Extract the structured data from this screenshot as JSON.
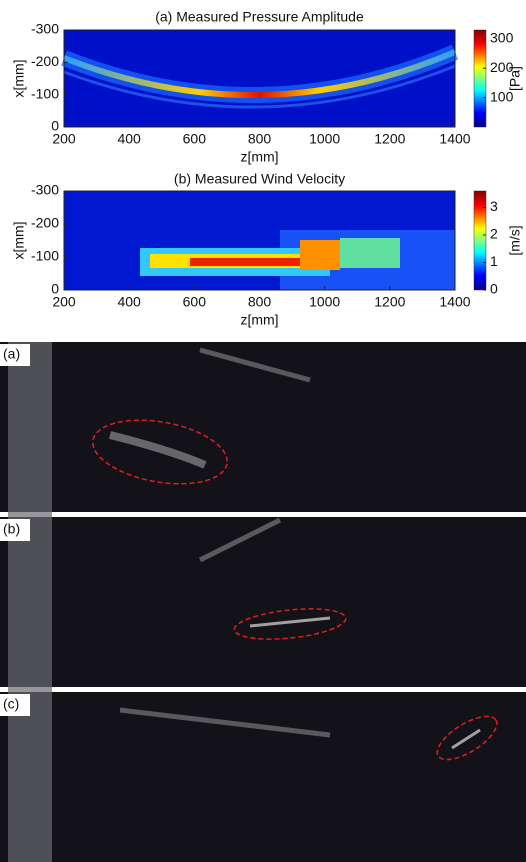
{
  "figure": {
    "panels": [
      {
        "title": "(a) Measured Pressure Amplitude",
        "xlabel": "z[mm]",
        "ylabel": "x[mm]",
        "xlim": [
          200,
          1400
        ],
        "ylim": [
          0,
          -300
        ],
        "xticks": [
          200,
          400,
          600,
          800,
          1000,
          1200,
          1400
        ],
        "yticks": [
          -300,
          -200,
          -100,
          0
        ],
        "colorbar": {
          "label": "[Pa]",
          "lim": [
            0,
            330
          ],
          "ticks": [
            100,
            200,
            300
          ]
        }
      },
      {
        "title": "(b) Measured Wind Velocity",
        "xlabel": "z[mm]",
        "ylabel": "x[mm]",
        "xlim": [
          200,
          1400
        ],
        "ylim": [
          0,
          -300
        ],
        "xticks": [
          200,
          400,
          600,
          800,
          1000,
          1200,
          1400
        ],
        "yticks": [
          -300,
          -200,
          -100,
          0
        ],
        "colorbar": {
          "label": "[m/s]",
          "lim": [
            0,
            3.6
          ],
          "ticks": [
            0,
            1,
            2,
            3
          ]
        }
      }
    ],
    "photos": [
      {
        "label": "(a)"
      },
      {
        "label": "(b)"
      },
      {
        "label": "(c)"
      }
    ]
  }
}
